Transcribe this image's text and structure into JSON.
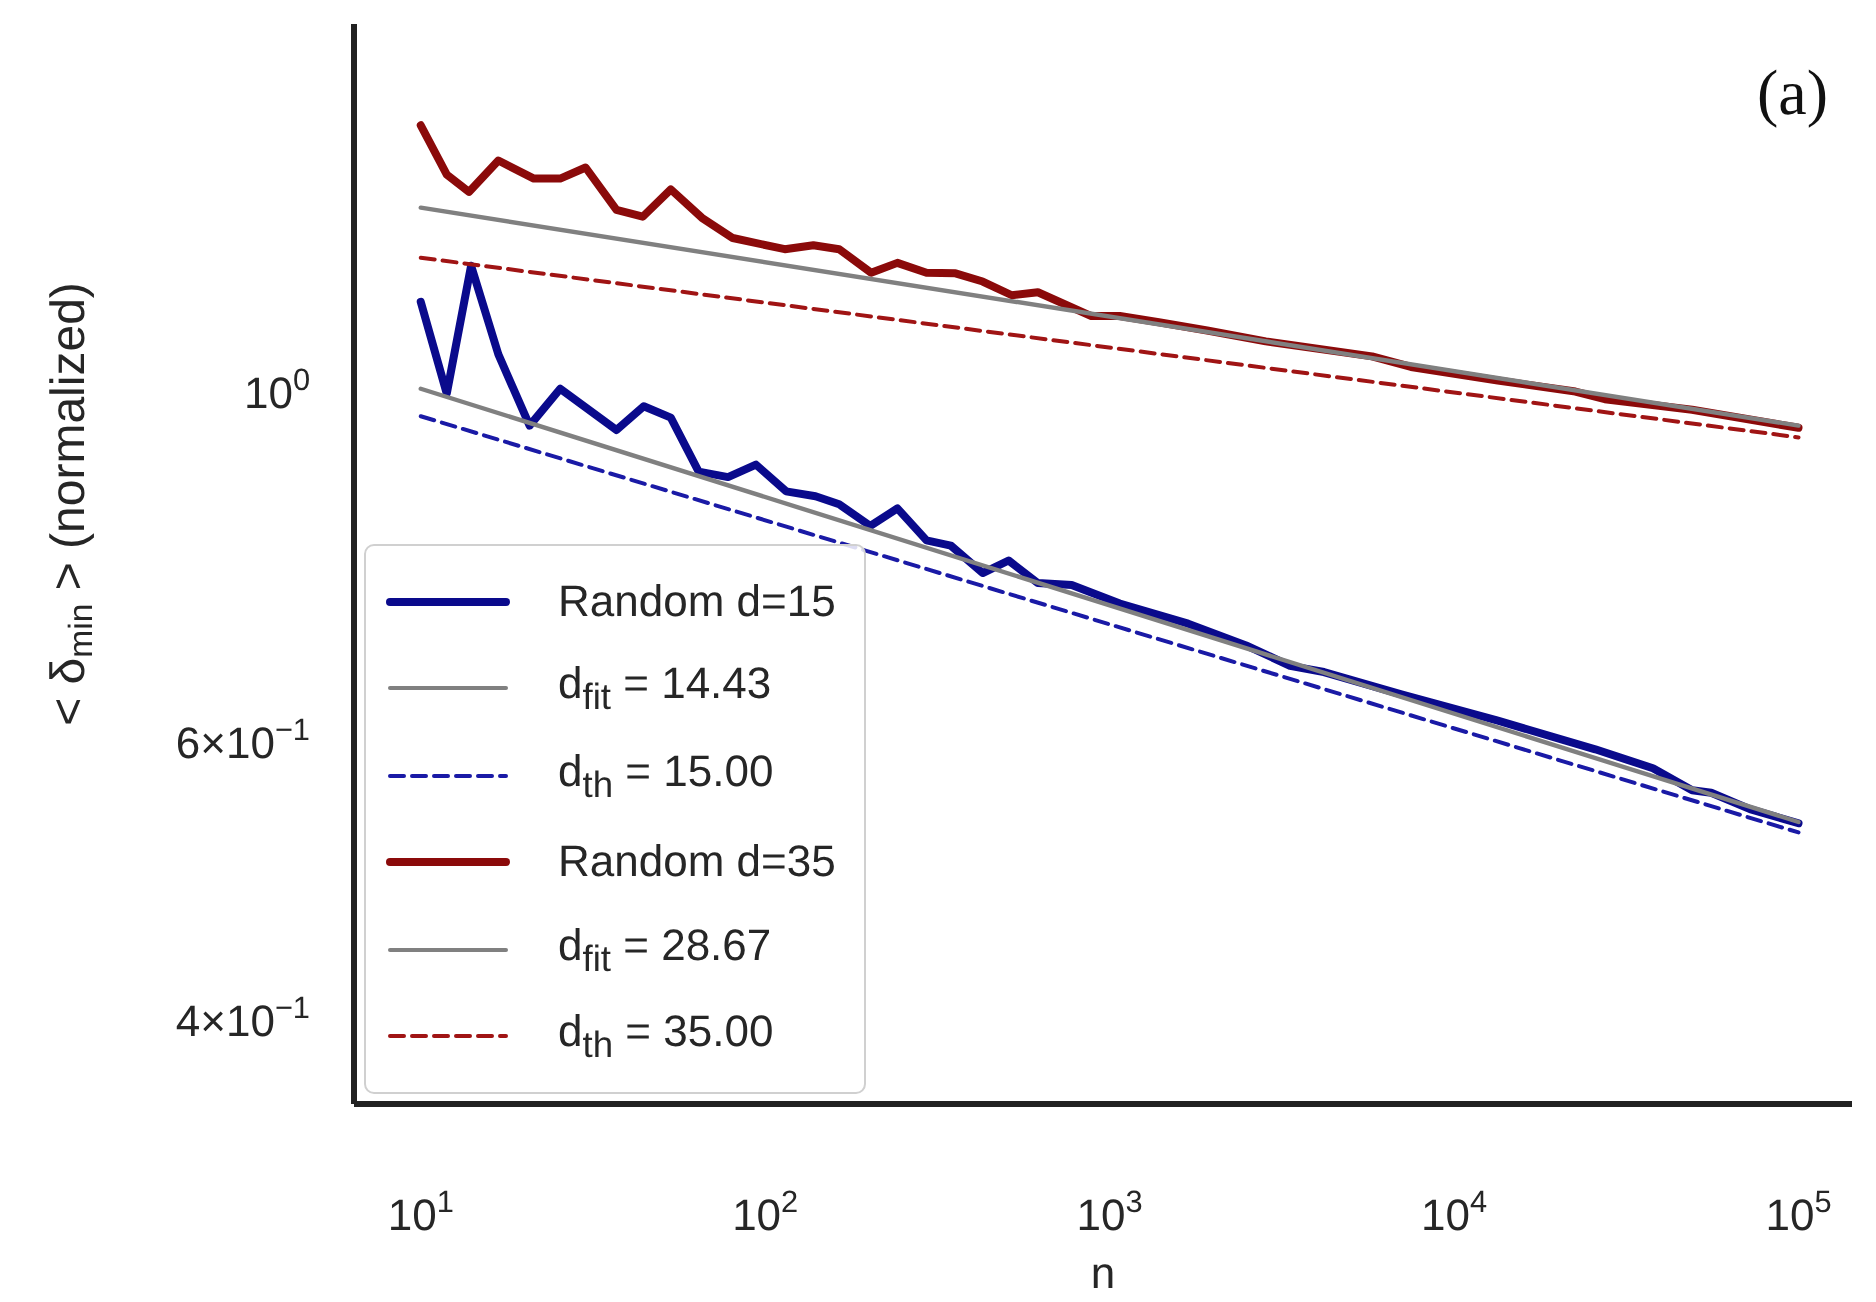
{
  "chart_data": {
    "type": "line",
    "xlabel": "n",
    "ylabel": "< δ$_{min}$ >  (normalized)",
    "log": "xy",
    "legend": "bottom left",
    "xlim": [
      6.4,
      143000
    ],
    "xticks": [
      {
        "value": 10,
        "label": "10$^{1}$"
      },
      {
        "value": 100,
        "label": "10$^{2}$"
      },
      {
        "value": 1000,
        "label": "10$^{3}$"
      },
      {
        "value": 10000,
        "label": "10$^{4}$"
      },
      {
        "value": 100000,
        "label": "10$^{5}$"
      }
    ],
    "ylim": [
      0.35,
      1.69
    ],
    "yticks": [
      {
        "value": 0.4,
        "label": "4×10$^{−1}$"
      },
      {
        "value": 0.6,
        "label": "6×10$^{−1}$"
      },
      {
        "value": 1,
        "label": "10$^{0}$"
      }
    ],
    "annotations": [
      "(a)"
    ],
    "series": [
      {
        "name": "Random d=15",
        "color": "#0a0a8c",
        "line_style": "solid",
        "x": [
          10,
          11.9,
          14.0,
          16.8,
          20.7,
          25.4,
          37.0,
          44.4,
          53.2,
          64.1,
          78.0,
          94.0,
          115,
          140,
          164,
          202,
          242,
          294,
          346,
          428,
          509,
          619,
          776,
          1070,
          1690,
          2490,
          3340,
          4190,
          7030,
          13400,
          25700,
          37800,
          49100,
          55800,
          72300,
          100000
        ],
        "values": [
          1.127,
          0.986,
          1.188,
          1.044,
          0.941,
          0.993,
          0.935,
          0.968,
          0.952,
          0.88,
          0.873,
          0.889,
          0.855,
          0.849,
          0.839,
          0.813,
          0.834,
          0.796,
          0.79,
          0.759,
          0.773,
          0.748,
          0.746,
          0.726,
          0.705,
          0.683,
          0.663,
          0.657,
          0.636,
          0.612,
          0.587,
          0.571,
          0.553,
          0.551,
          0.538,
          0.527
        ]
      },
      {
        "name": "d$_{fit}$ = 14.43",
        "color": "#808080",
        "line_style": "solid",
        "x": [
          10,
          100000
        ],
        "values": [
          0.993,
          0.528
        ]
      },
      {
        "name": "d$_{th}$ = 15.00",
        "color": "#1a1aa6",
        "line_style": "dashed",
        "x": [
          10,
          100000
        ],
        "values": [
          0.954,
          0.52
        ]
      },
      {
        "name": "Random d=35",
        "color": "#8b0a0a",
        "line_style": "solid",
        "x": [
          10,
          11.9,
          13.8,
          16.8,
          21.3,
          25.4,
          30.1,
          37.0,
          44.1,
          53.2,
          65.5,
          80.5,
          114,
          138,
          164,
          203,
          242,
          294,
          357,
          428,
          520,
          619,
          885,
          1070,
          1390,
          1920,
          2840,
          5780,
          7500,
          13400,
          22500,
          27400,
          49100,
          100000
        ],
        "values": [
          1.458,
          1.357,
          1.323,
          1.385,
          1.349,
          1.349,
          1.371,
          1.289,
          1.276,
          1.328,
          1.274,
          1.237,
          1.217,
          1.224,
          1.217,
          1.176,
          1.193,
          1.176,
          1.175,
          1.161,
          1.138,
          1.143,
          1.104,
          1.104,
          1.094,
          1.081,
          1.064,
          1.041,
          1.025,
          1.005,
          0.989,
          0.978,
          0.963,
          0.938
        ]
      },
      {
        "name": "d$_{fit}$ = 28.67",
        "color": "#808080",
        "line_style": "solid",
        "x": [
          10,
          100000
        ],
        "values": [
          1.293,
          0.941
        ]
      },
      {
        "name": "d$_{th}$ = 35.00",
        "color": "#a01414",
        "line_style": "dashed",
        "x": [
          10,
          100000
        ],
        "values": [
          1.202,
          0.925
        ]
      }
    ]
  }
}
